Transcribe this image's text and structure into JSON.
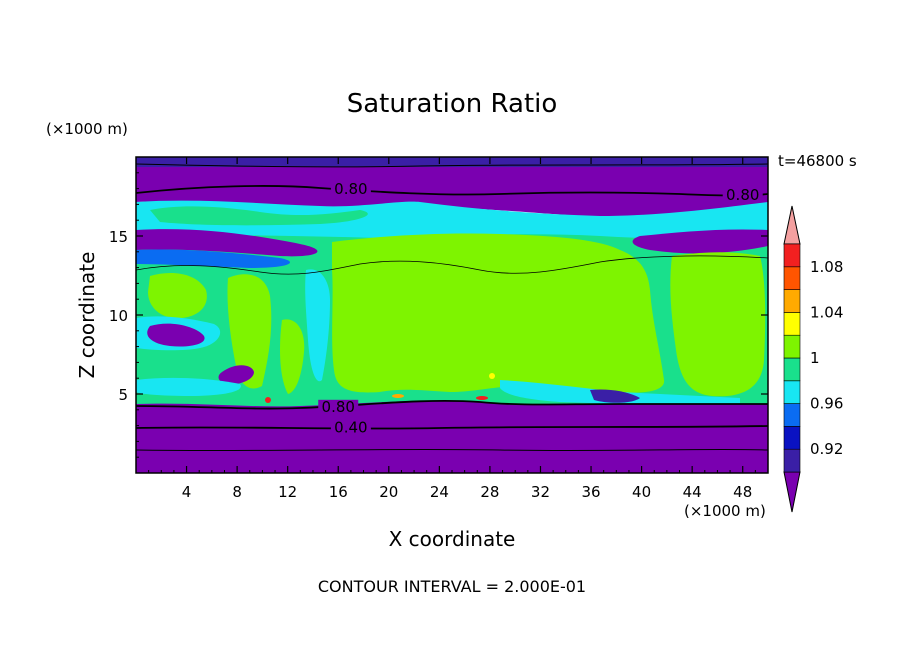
{
  "chart_data": {
    "type": "heatmap",
    "title": "Saturation Ratio",
    "xlabel": "X coordinate",
    "ylabel": "Z coordinate",
    "x_unit": "(×1000 m)",
    "y_unit": "(×1000 m)",
    "time_label": "t=46800 s",
    "footer": "CONTOUR INTERVAL = 2.000E-01",
    "xlim": [
      0,
      50
    ],
    "ylim": [
      0,
      20
    ],
    "x_ticks": [
      4,
      8,
      12,
      16,
      20,
      24,
      28,
      32,
      36,
      40,
      44,
      48
    ],
    "y_ticks": [
      5,
      10,
      15
    ],
    "contour_labels": [
      {
        "text": "0.80",
        "x": 17,
        "y": 17.8
      },
      {
        "text": "0.80",
        "x": 48,
        "y": 17.4
      },
      {
        "text": "0.80",
        "x": 16,
        "y": 4.0
      },
      {
        "text": "0.40",
        "x": 17,
        "y": 2.7
      }
    ],
    "colorbar": {
      "levels": [
        0.92,
        0.94,
        0.96,
        0.98,
        1.0,
        1.02,
        1.04,
        1.06,
        1.08,
        1.1
      ],
      "tick_labels": [
        "0.92",
        "0.96",
        "1",
        "1.04",
        "1.08"
      ],
      "colors": [
        "#7a00b0",
        "#3a1fa6",
        "#0a12c2",
        "#0a6cf2",
        "#18e6f2",
        "#19e08c",
        "#7ef400",
        "#ffff00",
        "#ffaa00",
        "#ff5500",
        "#f22020",
        "#f4a0a0"
      ]
    },
    "regions": [
      {
        "level": "<0.92",
        "color": "#7a00b0",
        "description": "lower layer z 0-4.5 and upper layer z 17-19.5"
      },
      {
        "level": "0.98-1.00",
        "color": "#19e08c",
        "description": "mid layer z 4.5-14 background"
      },
      {
        "level": "1.00-1.02",
        "color": "#7ef400",
        "description": "large cells z 5-14"
      },
      {
        "level": "0.96-0.98",
        "color": "#18e6f2",
        "description": "thin bands near z 15-17"
      }
    ]
  }
}
